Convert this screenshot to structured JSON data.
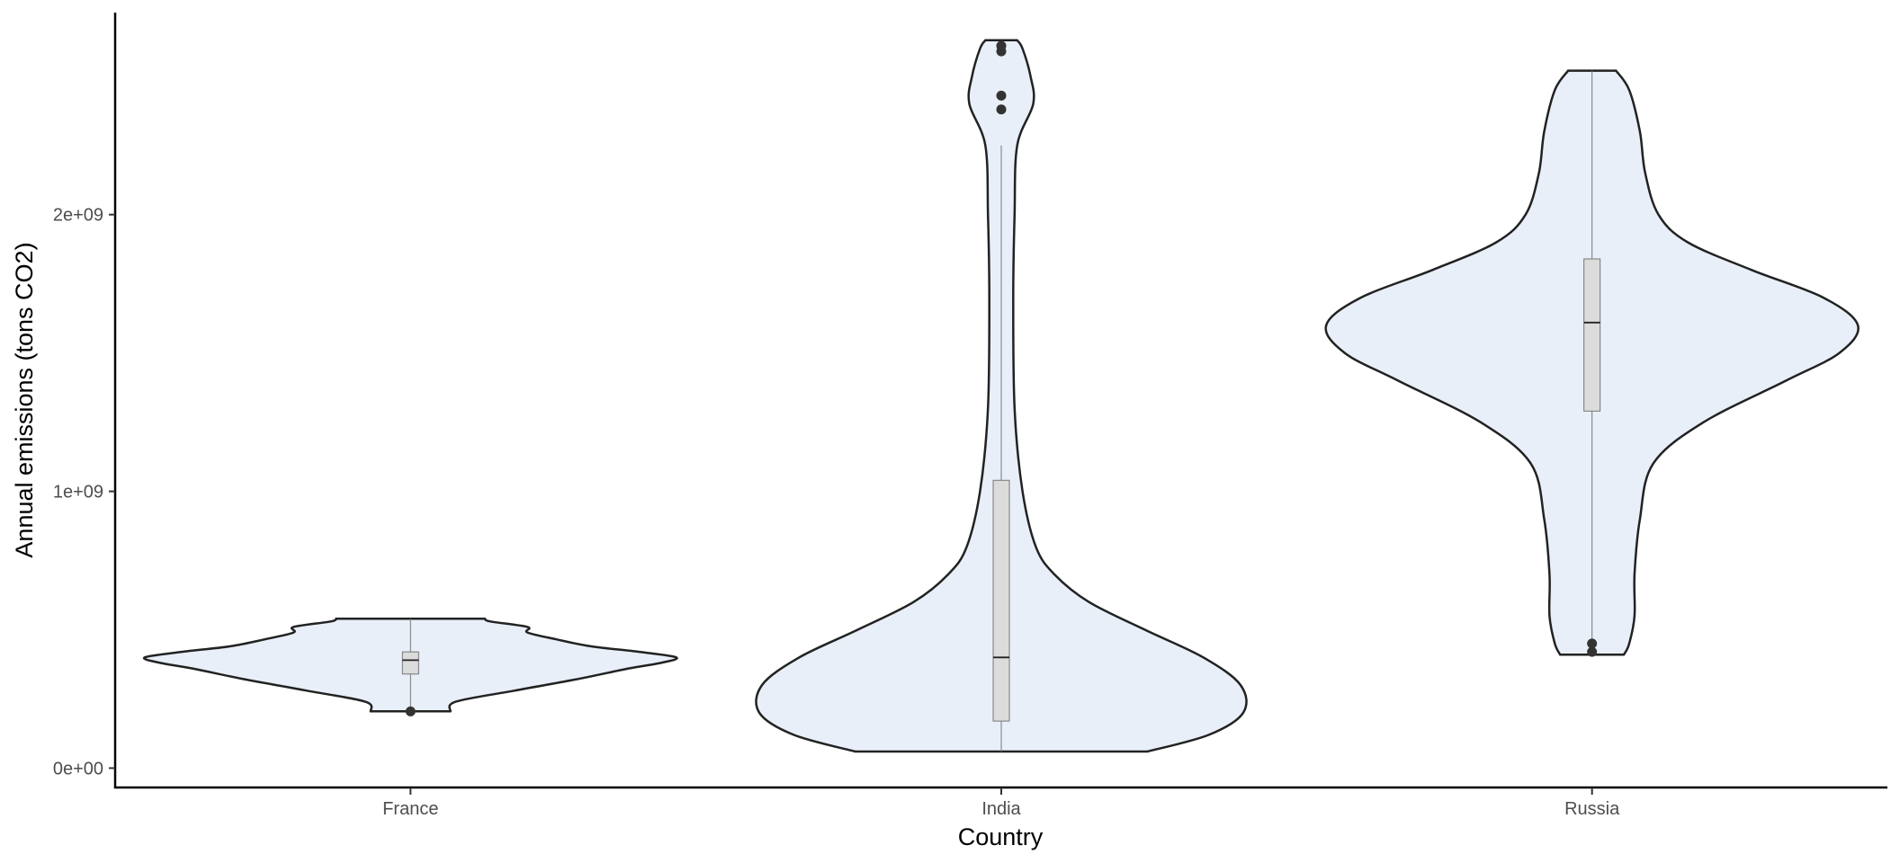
{
  "chart_data": {
    "type": "violin",
    "title": "",
    "xlabel": "Country",
    "ylabel": "Annual emissions (tons CO2)",
    "categories": [
      "France",
      "India",
      "Russia"
    ],
    "y_ticks": [
      {
        "value": 0,
        "label": "0e+00"
      },
      {
        "value": 1000000000,
        "label": "1e+09"
      },
      {
        "value": 2000000000,
        "label": "2e+09"
      }
    ],
    "ylim": [
      -70000000,
      2730000000
    ],
    "grid": false,
    "legend": "none",
    "colors": {
      "violin_fill": "#e8eff9",
      "violin_stroke": "#222222",
      "box_fill": "#dcdcdc",
      "box_stroke": "#777777",
      "outlier": "#333333",
      "axis": "#000000"
    },
    "violins": [
      {
        "name": "France",
        "box": {
          "q1": 340000000,
          "median": 390000000,
          "q3": 420000000,
          "whisker_low": 210000000,
          "whisker_high": 540000000
        },
        "outliers": [
          205000000
        ],
        "density": [
          [
            205000000,
            0.15
          ],
          [
            240000000,
            0.17
          ],
          [
            280000000,
            0.39
          ],
          [
            320000000,
            0.62
          ],
          [
            360000000,
            0.82
          ],
          [
            380000000,
            0.94
          ],
          [
            400000000,
            1.0
          ],
          [
            420000000,
            0.86
          ],
          [
            440000000,
            0.68
          ],
          [
            465000000,
            0.55
          ],
          [
            490000000,
            0.44
          ],
          [
            510000000,
            0.44
          ],
          [
            530000000,
            0.3
          ],
          [
            540000000,
            0.28
          ]
        ]
      },
      {
        "name": "India",
        "box": {
          "q1": 170000000,
          "median": 400000000,
          "q3": 1040000000,
          "whisker_low": 60000000,
          "whisker_high": 2250000000
        },
        "outliers": [
          2380000000,
          2430000000,
          2590000000,
          2610000000
        ],
        "density": [
          [
            60000000,
            0.55
          ],
          [
            120000000,
            0.78
          ],
          [
            200000000,
            0.91
          ],
          [
            300000000,
            0.9
          ],
          [
            400000000,
            0.76
          ],
          [
            500000000,
            0.54
          ],
          [
            600000000,
            0.33
          ],
          [
            700000000,
            0.2
          ],
          [
            800000000,
            0.13
          ],
          [
            1000000000,
            0.08
          ],
          [
            1300000000,
            0.05
          ],
          [
            1700000000,
            0.045
          ],
          [
            2000000000,
            0.05
          ],
          [
            2250000000,
            0.06
          ],
          [
            2400000000,
            0.12
          ],
          [
            2500000000,
            0.11
          ],
          [
            2600000000,
            0.08
          ],
          [
            2630000000,
            0.06
          ]
        ]
      },
      {
        "name": "Russia",
        "box": {
          "q1": 1290000000,
          "median": 1610000000,
          "q3": 1840000000,
          "whisker_low": 450000000,
          "whisker_high": 2520000000
        },
        "outliers": [
          420000000,
          450000000
        ],
        "density": [
          [
            410000000,
            0.12
          ],
          [
            450000000,
            0.14
          ],
          [
            550000000,
            0.16
          ],
          [
            700000000,
            0.16
          ],
          [
            900000000,
            0.18
          ],
          [
            1100000000,
            0.23
          ],
          [
            1250000000,
            0.42
          ],
          [
            1400000000,
            0.73
          ],
          [
            1500000000,
            0.93
          ],
          [
            1600000000,
            1.0
          ],
          [
            1700000000,
            0.87
          ],
          [
            1800000000,
            0.6
          ],
          [
            1900000000,
            0.36
          ],
          [
            2000000000,
            0.25
          ],
          [
            2150000000,
            0.2
          ],
          [
            2300000000,
            0.18
          ],
          [
            2450000000,
            0.14
          ],
          [
            2520000000,
            0.09
          ]
        ]
      }
    ]
  }
}
